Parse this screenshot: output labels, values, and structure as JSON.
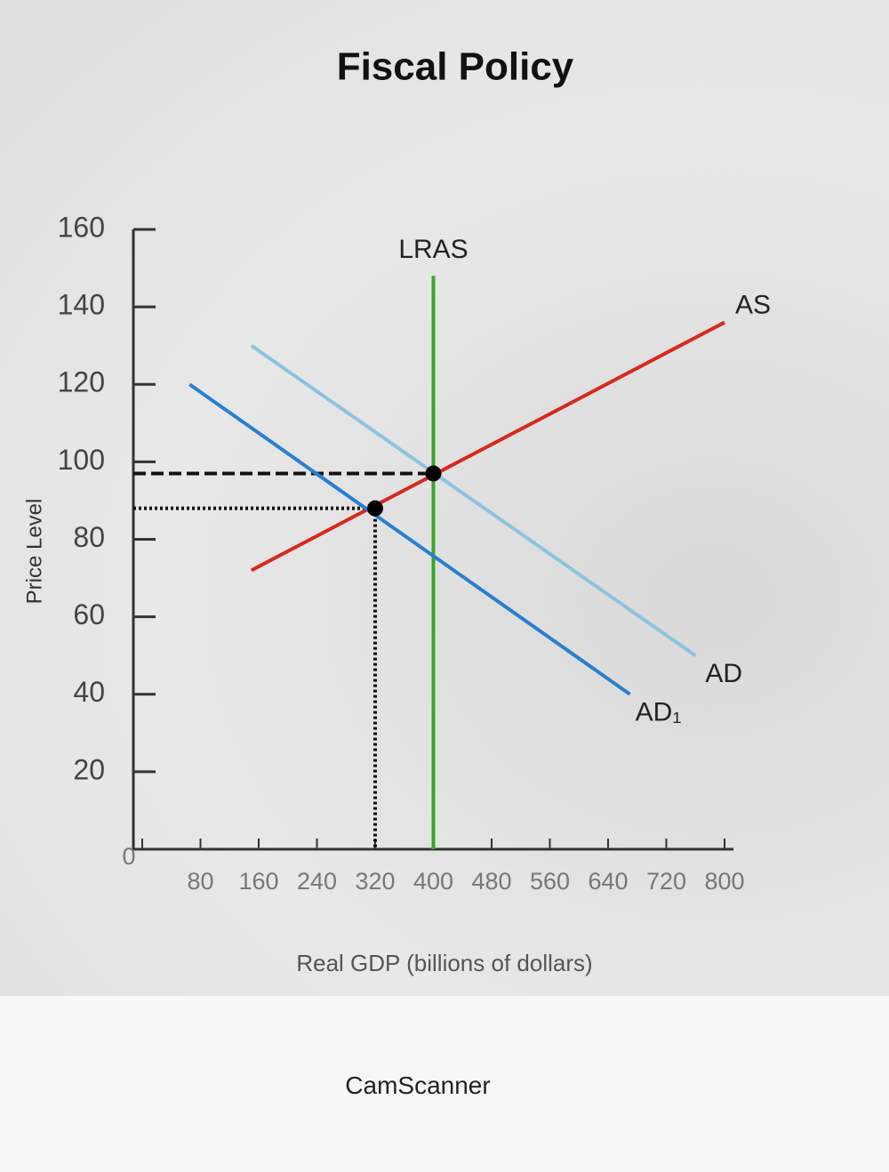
{
  "chart_data": {
    "type": "line",
    "title": "Fiscal Policy",
    "xlabel": "Real GDP (billions of dollars)",
    "ylabel": "Price Level",
    "xlim": [
      0,
      800
    ],
    "ylim": [
      0,
      160
    ],
    "xticks": [
      0,
      80,
      160,
      240,
      320,
      400,
      480,
      560,
      640,
      720,
      800
    ],
    "yticks": [
      20,
      40,
      60,
      80,
      100,
      120,
      140,
      160
    ],
    "series": [
      {
        "name": "LRAS",
        "color": "#3aa52a",
        "x": [
          400,
          400
        ],
        "values": [
          0,
          148
        ]
      },
      {
        "name": "AS",
        "color": "#d8281f",
        "x": [
          150,
          800
        ],
        "values": [
          72,
          136
        ]
      },
      {
        "name": "AD",
        "color": "#8cc3e0",
        "x": [
          150,
          760
        ],
        "values": [
          130,
          50
        ]
      },
      {
        "name": "AD₁",
        "color": "#2a7fd0",
        "x": [
          65,
          670
        ],
        "values": [
          120,
          40
        ]
      }
    ],
    "points": [
      {
        "x": 320,
        "y": 88
      },
      {
        "x": 400,
        "y": 97
      }
    ]
  },
  "footer": "CamScanner"
}
